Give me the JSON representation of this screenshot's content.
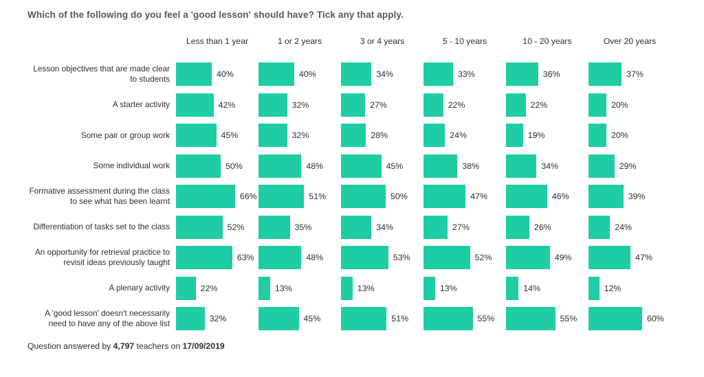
{
  "title": "Which of the following do you feel a 'good lesson' should have? Tick any that apply.",
  "footer": {
    "prefix": "Question answered by ",
    "count": "4,797",
    "middle": " teachers on ",
    "date": "17/09/2019"
  },
  "chart_data": {
    "type": "bar",
    "orientation": "horizontal",
    "title": "Which of the following do you feel a 'good lesson' should have? Tick any that apply.",
    "value_suffix": "%",
    "xlim": [
      0,
      100
    ],
    "bar_color": "#1fcda4",
    "grid": false,
    "legend_position": "none",
    "categories": [
      "Lesson objectives that are made clear to students",
      "A starter activity",
      "Some pair or group work",
      "Some individual work",
      "Formative assessment during the class to see what has been learnt",
      "Differentiation of tasks set to the class",
      "An opportunity for retrieval practice to revisit ideas previously taught",
      "A plenary activity",
      "A 'good lesson' doesn't necessarily need to have any of the above list"
    ],
    "series": [
      {
        "name": "Less than 1 year",
        "values": [
          40,
          42,
          45,
          50,
          66,
          52,
          63,
          22,
          32
        ]
      },
      {
        "name": "1 or 2 years",
        "values": [
          40,
          32,
          32,
          48,
          51,
          35,
          48,
          13,
          45
        ]
      },
      {
        "name": "3 or 4 years",
        "values": [
          34,
          27,
          28,
          45,
          50,
          34,
          53,
          13,
          51
        ]
      },
      {
        "name": "5 - 10 years",
        "values": [
          33,
          22,
          24,
          38,
          47,
          27,
          52,
          13,
          55
        ]
      },
      {
        "name": "10 - 20 years",
        "values": [
          36,
          22,
          19,
          34,
          46,
          26,
          49,
          14,
          55
        ]
      },
      {
        "name": "Over 20 years",
        "values": [
          37,
          20,
          20,
          29,
          39,
          24,
          47,
          12,
          60
        ]
      }
    ]
  }
}
